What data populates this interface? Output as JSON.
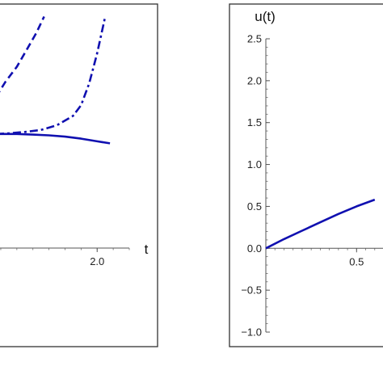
{
  "chart_data": [
    {
      "type": "line",
      "title": "",
      "xlabel": "t",
      "ylabel": "",
      "xlim": [
        1.37,
        2.2
      ],
      "ylim": [
        -0.7,
        2.9
      ],
      "x_ticks": [
        {
          "value": 2.0,
          "label": "2.0"
        }
      ],
      "y_ticks": [],
      "grid": false,
      "series": [
        {
          "style": "solid",
          "color": "#1010b0",
          "x": [
            1.37,
            1.5,
            1.6,
            1.7,
            1.8,
            1.9,
            2.0,
            2.08
          ],
          "y": [
            1.0,
            1.0,
            0.99,
            0.98,
            0.96,
            0.93,
            0.89,
            0.86
          ]
        },
        {
          "style": "dashed",
          "color": "#1010b0",
          "x": [
            1.37,
            1.43,
            1.5,
            1.56,
            1.62,
            1.67
          ],
          "y": [
            1.55,
            1.78,
            2.0,
            2.25,
            2.5,
            2.75
          ]
        },
        {
          "style": "dash-dot",
          "color": "#1010b0",
          "x": [
            1.37,
            1.45,
            1.55,
            1.65,
            1.75,
            1.85,
            1.9,
            1.95,
            2.0,
            2.05
          ],
          "y": [
            1.0,
            1.01,
            1.03,
            1.06,
            1.13,
            1.27,
            1.43,
            1.75,
            2.2,
            2.75
          ]
        }
      ]
    },
    {
      "type": "line",
      "title": "",
      "xlabel": "",
      "ylabel": "u(t)",
      "xlim": [
        0,
        0.65
      ],
      "ylim": [
        -1.0,
        2.5
      ],
      "x_ticks": [
        {
          "value": 0.5,
          "label": "0.5"
        }
      ],
      "y_ticks": [
        {
          "value": 2.5,
          "label": "2.5"
        },
        {
          "value": 2.0,
          "label": "2.0"
        },
        {
          "value": 1.5,
          "label": "1.5"
        },
        {
          "value": 1.0,
          "label": "1.0"
        },
        {
          "value": 0.5,
          "label": "0.5"
        },
        {
          "value": 0.0,
          "label": "0.0"
        },
        {
          "value": -0.5,
          "label": "−0.5"
        },
        {
          "value": -1.0,
          "label": "−1.0"
        }
      ],
      "grid": false,
      "series": [
        {
          "style": "solid",
          "color": "#1010b0",
          "x": [
            0,
            0.1,
            0.2,
            0.3,
            0.4,
            0.5,
            0.6
          ],
          "y": [
            0.0,
            0.11,
            0.21,
            0.31,
            0.41,
            0.5,
            0.58
          ]
        }
      ]
    }
  ]
}
